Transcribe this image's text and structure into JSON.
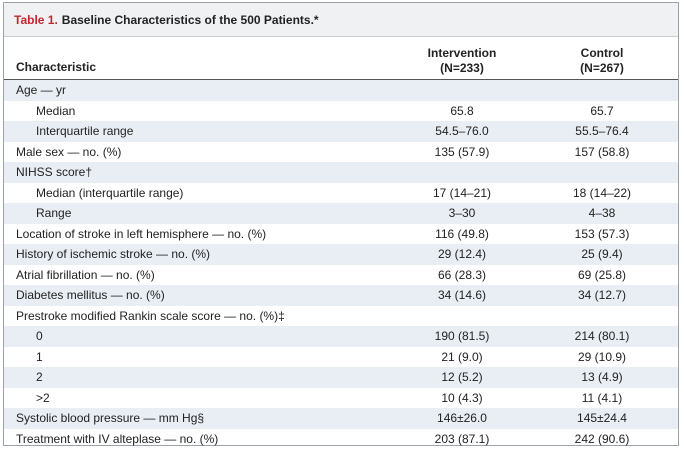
{
  "table": {
    "label": "Table 1.",
    "title": "Baseline Characteristics of the 500 Patients.*",
    "header": {
      "characteristic": "Characteristic",
      "intervention": [
        "Intervention",
        "(N=233)"
      ],
      "control": [
        "Control",
        "(N=267)"
      ]
    },
    "rows": [
      {
        "label": "Age — yr",
        "children": [
          {
            "label": "Median",
            "intervention": "65.8",
            "control": "65.7"
          },
          {
            "label": "Interquartile range",
            "intervention": "54.5–76.0",
            "control": "55.5–76.4"
          }
        ]
      },
      {
        "label": "Male sex — no. (%)",
        "intervention": "135 (57.9)",
        "control": "157 (58.8)"
      },
      {
        "label": "NIHSS score†",
        "children": [
          {
            "label": "Median (interquartile range)",
            "intervention": "17 (14–21)",
            "control": "18 (14–22)"
          },
          {
            "label": "Range",
            "intervention": "3–30",
            "control": "4–38"
          }
        ]
      },
      {
        "label": "Location of stroke in left hemisphere — no. (%)",
        "intervention": "116 (49.8)",
        "control": "153 (57.3)"
      },
      {
        "label": "History of ischemic stroke — no. (%)",
        "intervention": "29 (12.4)",
        "control": "25 (9.4)"
      },
      {
        "label": "Atrial fibrillation — no. (%)",
        "intervention": "66 (28.3)",
        "control": "69 (25.8)"
      },
      {
        "label": "Diabetes mellitus — no. (%)",
        "intervention": "34 (14.6)",
        "control": "34 (12.7)"
      },
      {
        "label": "Prestroke modified Rankin scale score — no. (%)‡",
        "children": [
          {
            "label": "0",
            "intervention": "190 (81.5)",
            "control": "214 (80.1)"
          },
          {
            "label": "1",
            "intervention": "21 (9.0)",
            "control": "29 (10.9)"
          },
          {
            "label": "2",
            "intervention": "12 (5.2)",
            "control": "13 (4.9)"
          },
          {
            "label": ">2",
            "intervention": "10 (4.3)",
            "control": "11 (4.1)"
          }
        ]
      },
      {
        "label": "Systolic blood pressure — mm Hg§",
        "intervention": "146±26.0",
        "control": "145±24.4"
      },
      {
        "label": "Treatment with IV alteplase — no. (%)",
        "intervention": "203 (87.1)",
        "control": "242 (90.6)"
      }
    ]
  }
}
